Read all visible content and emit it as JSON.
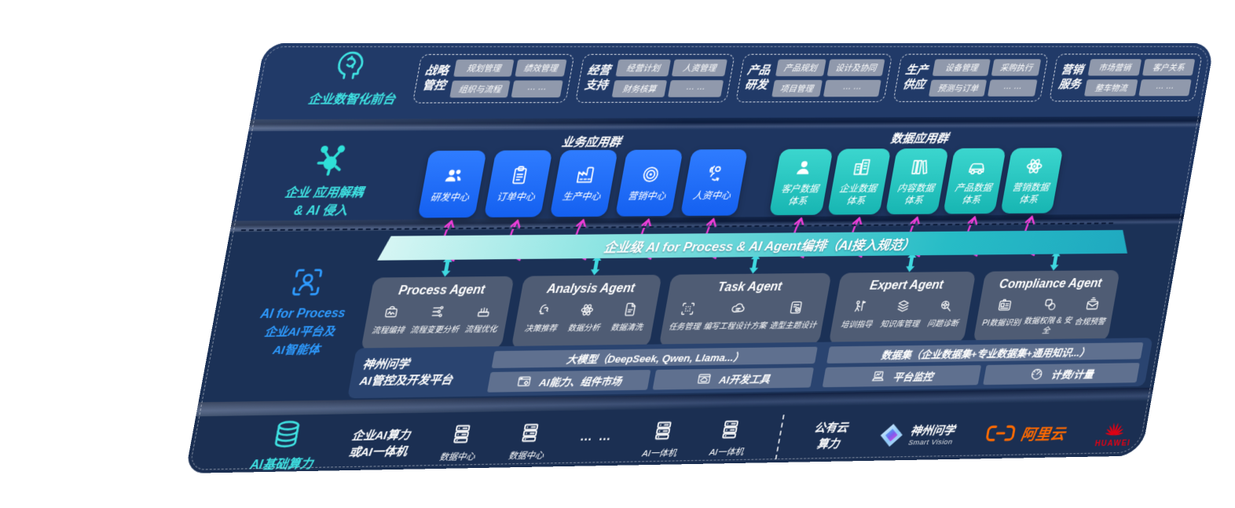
{
  "colors": {
    "accent_teal": "#3FE2E2",
    "accent_blue": "#2E9BFF",
    "tile_blue": "#1E6EF5",
    "tile_teal": "#2CC9C4",
    "magenta": "#ED3ED8",
    "navy": "#1E3560",
    "aliyun_orange": "#FF6A00",
    "huawei_red": "#E60012"
  },
  "front_office": {
    "label": "企业数智化前台",
    "icon": "brain-head-icon",
    "groups": [
      {
        "t1": "战略",
        "t2": "管控",
        "chips": [
          "规划管理",
          "绩效管理",
          "组织与流程",
          "… …"
        ]
      },
      {
        "t1": "经营",
        "t2": "支持",
        "chips": [
          "经营计划",
          "人资管理",
          "财务核算",
          "… …"
        ]
      },
      {
        "t1": "产品",
        "t2": "研发",
        "chips": [
          "产品规划",
          "设计及协同",
          "项目管理",
          "… …"
        ]
      },
      {
        "t1": "生产",
        "t2": "供应",
        "chips": [
          "设备管理",
          "采购执行",
          "预测与订单",
          "… …"
        ]
      },
      {
        "t1": "营销",
        "t2": "服务",
        "chips": [
          "市场营销",
          "客户关系",
          "整车物流",
          "… …"
        ]
      }
    ]
  },
  "decoupling": {
    "label_line1": "企业 应用解耦",
    "label_line2": "& AI 侵入",
    "icon": "molecule-icon",
    "business_group": {
      "title": "业务应用群",
      "tiles": [
        {
          "label": "研发中心",
          "icon": "people-icon"
        },
        {
          "label": "订单中心",
          "icon": "clipboard-icon"
        },
        {
          "label": "生产中心",
          "icon": "factory-icon"
        },
        {
          "label": "营销中心",
          "icon": "target-icon"
        },
        {
          "label": "人资中心",
          "icon": "person-signal-icon"
        }
      ]
    },
    "data_group": {
      "title": "数据应用群",
      "tiles": [
        {
          "label": "客户数据体系",
          "icon": "user-icon"
        },
        {
          "label": "企业数据体系",
          "icon": "building-icon"
        },
        {
          "label": "内容数据体系",
          "icon": "books-icon"
        },
        {
          "label": "产品数据体系",
          "icon": "car-icon"
        },
        {
          "label": "营销数据体系",
          "icon": "atom-icon"
        }
      ]
    }
  },
  "ai_process": {
    "label_line1": "AI for Process",
    "label_line2": "企业AI平台及",
    "label_line3": "AI智能体",
    "icon": "person-scan-icon",
    "bus_bar": "企业级 AI for Process & AI Agent编排（AI接入规范）",
    "agents": [
      {
        "title": "Process Agent",
        "items": [
          {
            "label": "流程编排",
            "icon": "box-wave-icon"
          },
          {
            "label": "流程变更分析",
            "icon": "flow-nodes-icon"
          },
          {
            "label": "流程优化",
            "icon": "machine-icon"
          }
        ]
      },
      {
        "title": "Analysis Agent",
        "items": [
          {
            "label": "决策推荐",
            "icon": "head-chat-icon"
          },
          {
            "label": "数据分析",
            "icon": "atom-icon"
          },
          {
            "label": "数据清洗",
            "icon": "doc-gear-icon"
          }
        ]
      },
      {
        "title": "Task Agent",
        "items": [
          {
            "label": "任务管理",
            "icon": "grid-scan-icon"
          },
          {
            "label": "编写工程设计方案",
            "icon": "cloud-tune-icon"
          },
          {
            "label": "造型主题设计",
            "icon": "check-card-icon"
          }
        ]
      },
      {
        "title": "Expert Agent",
        "items": [
          {
            "label": "培训指导",
            "icon": "trainer-icon"
          },
          {
            "label": "知识库管理",
            "icon": "layers-icon"
          },
          {
            "label": "问题诊断",
            "icon": "diagnose-icon"
          }
        ]
      },
      {
        "title": "Compliance Agent",
        "items": [
          {
            "label": "PI数据识别",
            "icon": "id-card-icon"
          },
          {
            "label": "数据权限 & 安全",
            "icon": "shapes-link-icon"
          },
          {
            "label": "合规预警",
            "icon": "mail-alert-icon"
          }
        ]
      }
    ]
  },
  "platform": {
    "label_line1": "神州问学",
    "label_line2": "AI管控及开发平台",
    "model_bar": "大模型（DeepSeek, Qwen, Llama...）",
    "dataset_bar": "数据集（企业数据集+专业数据集+通用知识...）",
    "cells": [
      {
        "label": "AI能力、组件市场",
        "icon": "window-gear-icon"
      },
      {
        "label": "AI开发工具",
        "icon": "window-cloud-icon"
      },
      {
        "label": "平台监控",
        "icon": "laptop-chart-icon"
      },
      {
        "label": "计费/计量",
        "icon": "gauge-icon"
      }
    ]
  },
  "infra": {
    "label": "AI基础算力",
    "icon": "database-icon",
    "compute_label_line1": "企业AI算力",
    "compute_label_line2": "或AI一体机",
    "nodes": [
      {
        "label": "数据中心",
        "icon": "server-icon"
      },
      {
        "label": "数据中心",
        "icon": "server-icon"
      }
    ],
    "ellipsis": "… …",
    "appliances": [
      {
        "label": "AI一体机",
        "icon": "server-icon"
      },
      {
        "label": "AI一体机",
        "icon": "server-icon"
      }
    ],
    "public_cloud_line1": "公有云",
    "public_cloud_line2": "算力",
    "vendors": [
      {
        "name_cn": "神州问学",
        "name_en": "Smart Vision",
        "icon": "smartvision-logo"
      },
      {
        "name": "阿里云",
        "icon": "aliyun-logo"
      },
      {
        "name": "HUAWEI",
        "icon": "huawei-logo"
      }
    ]
  }
}
